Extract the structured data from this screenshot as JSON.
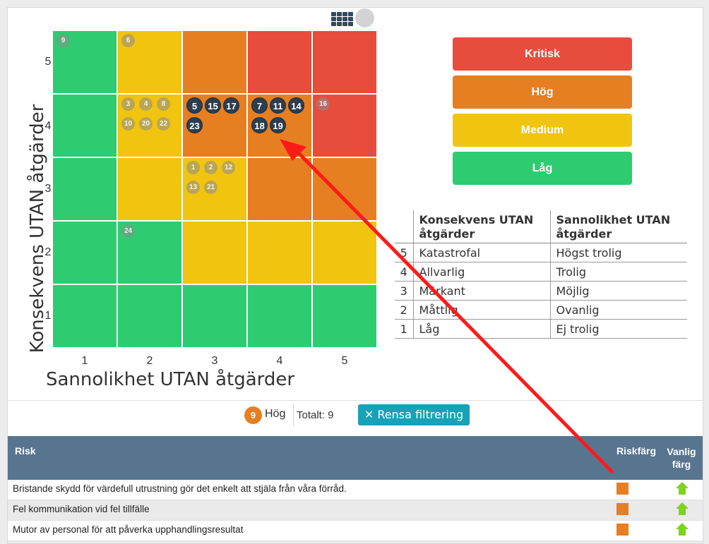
{
  "matrix": {
    "y_label": "Konsekvens UTAN åtgärder",
    "x_label": "Sannolikhet UTAN åtgärder",
    "y_ticks": [
      "5",
      "4",
      "3",
      "2",
      "1"
    ],
    "x_ticks": [
      "1",
      "2",
      "3",
      "4",
      "5"
    ],
    "colors": {
      "green": "#2ecc71",
      "yellow": "#f1c40f",
      "orange": "#e67e22",
      "red": "#e74c3c"
    },
    "cells": [
      [
        "green",
        "yellow",
        "orange",
        "red",
        "red"
      ],
      [
        "green",
        "yellow",
        "orange",
        "orange",
        "red"
      ],
      [
        "green",
        "yellow",
        "yellow",
        "orange",
        "orange"
      ],
      [
        "green",
        "green",
        "yellow",
        "yellow",
        "yellow"
      ],
      [
        "green",
        "green",
        "green",
        "green",
        "green"
      ]
    ],
    "markers": {
      "r1c1": [
        "9"
      ],
      "r1c2": [
        "6"
      ],
      "r2c2": [
        "3",
        "4",
        "8",
        "10",
        "20",
        "22"
      ],
      "r2c3_dark": [
        "5",
        "15",
        "17",
        "23"
      ],
      "r2c4_dark": [
        "7",
        "11",
        "14",
        "18",
        "19"
      ],
      "r2c5": [
        "16"
      ],
      "r3c3": [
        "1",
        "2",
        "12",
        "13",
        "21"
      ],
      "r4c2": [
        "24"
      ]
    }
  },
  "legend": [
    {
      "label": "Kritisk",
      "color": "#e74c3c"
    },
    {
      "label": "Hög",
      "color": "#e67e22"
    },
    {
      "label": "Medium",
      "color": "#f1c40f"
    },
    {
      "label": "Låg",
      "color": "#2ecc71"
    }
  ],
  "scale_table": {
    "header_consequence": "Konsekvens UTAN åtgärder",
    "header_probability": "Sannolikhet UTAN åtgärder",
    "rows": [
      {
        "n": "5",
        "consequence": "Katastrofal",
        "probability": "Högst trolig"
      },
      {
        "n": "4",
        "consequence": "Allvarlig",
        "probability": "Trolig"
      },
      {
        "n": "3",
        "consequence": "Märkant",
        "probability": "Möjlig"
      },
      {
        "n": "2",
        "consequence": "Måttlig",
        "probability": "Ovanlig"
      },
      {
        "n": "1",
        "consequence": "Låg",
        "probability": "Ej trolig"
      }
    ]
  },
  "filter": {
    "count": "9",
    "level": "Hög",
    "total": "Totalt: 9",
    "clear_label": "Rensa filtrering"
  },
  "risk_table": {
    "col_risk": "Risk",
    "col_color": "Riskfärg",
    "col_usual": "Vanlig färg",
    "rows": [
      {
        "text": "Bristande skydd för värdefull utrustning gör det enkelt att stjäla från våra förråd."
      },
      {
        "text": "Fel kommunikation vid fel tillfälle"
      },
      {
        "text": "Mutor av personal för att påverka upphandlingsresultat"
      },
      {
        "text": ""
      }
    ],
    "risk_color": "#e67e22",
    "usual_color": "#7ed321"
  }
}
